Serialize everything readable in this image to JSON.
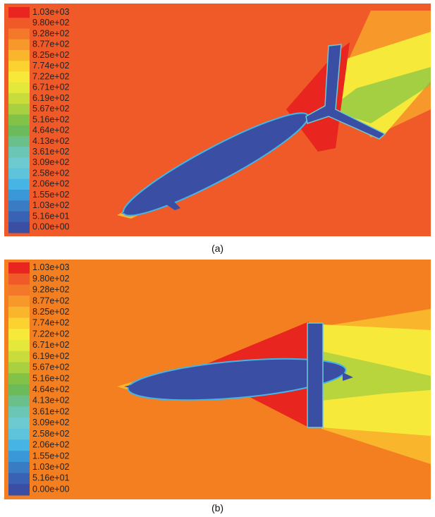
{
  "panels": [
    {
      "legend": [
        "1.03e+03",
        "9.80e+02",
        "9.28e+02",
        "8.77e+02",
        "8.25e+02",
        "7.74e+02",
        "7.22e+02",
        "6.71e+02",
        "6.19e+02",
        "5.67e+02",
        "5.16e+02",
        "4.64e+02",
        "4.13e+02",
        "3.61e+02",
        "3.09e+02",
        "2.58e+02",
        "2.06e+02",
        "1.55e+02",
        "1.03e+02",
        "5.16e+01",
        "0.00e+00"
      ],
      "caption": "(a)"
    },
    {
      "legend": [
        "1.03e+03",
        "9.80e+02",
        "9.28e+02",
        "8.77e+02",
        "8.25e+02",
        "7.74e+02",
        "7.22e+02",
        "6.71e+02",
        "6.19e+02",
        "5.67e+02",
        "5.16e+02",
        "4.64e+02",
        "4.13e+02",
        "3.61e+02",
        "3.09e+02",
        "2.58e+02",
        "2.06e+02",
        "1.55e+02",
        "1.03e+02",
        "5.16e+01",
        "0.00e+00"
      ],
      "caption": "(b)"
    }
  ]
}
